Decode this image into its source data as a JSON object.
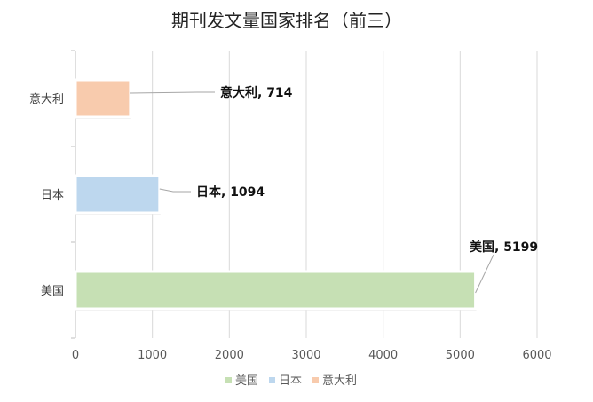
{
  "chart_data": {
    "type": "bar",
    "orientation": "horizontal",
    "title": "期刊发文量国家排名（前三）",
    "xlabel": "",
    "ylabel": "",
    "xlim": [
      0,
      6000
    ],
    "x_ticks": [
      0,
      1000,
      2000,
      3000,
      4000,
      5000,
      6000
    ],
    "grid": true,
    "legend_position": "bottom",
    "categories": [
      "美国",
      "日本",
      "意大利"
    ],
    "values": [
      5199,
      1094,
      714
    ],
    "colors": [
      "#C6E0B4",
      "#BDD7EE",
      "#F8CBAD"
    ],
    "data_labels": [
      "美国, 5199",
      "日本, 1094",
      "意大利, 714"
    ]
  }
}
